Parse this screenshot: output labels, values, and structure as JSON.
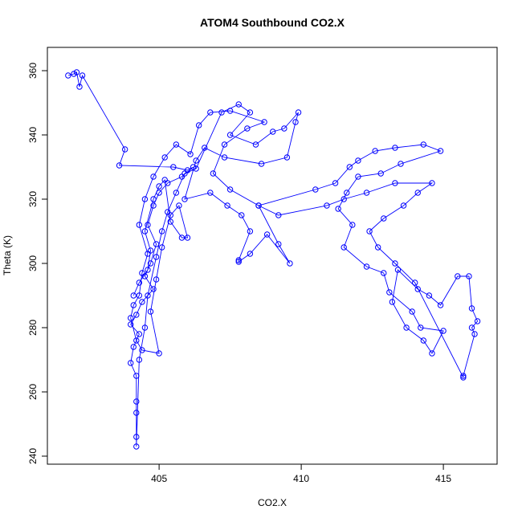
{
  "chart_data": {
    "type": "line",
    "title": "ATOM4 Southbound CO2.X",
    "x_label": "CO2.X",
    "y_label": "Theta (K)",
    "color": "#0000ff",
    "markers": true,
    "xlim": [
      401.07,
      416.89
    ],
    "ylim": [
      237.5,
      367.25
    ],
    "xticks": [
      405,
      410,
      415
    ],
    "yticks": [
      240,
      260,
      280,
      300,
      320,
      340,
      360
    ],
    "x": [
      401.8,
      402,
      402.1,
      402.2,
      402.3,
      403.8,
      403.6,
      405.5,
      406,
      406.2,
      405.8,
      405.3,
      405,
      404.8,
      404.6,
      404.9,
      404.7,
      404.5,
      404.8,
      404.4,
      404.2,
      404,
      404.3,
      404.1,
      404,
      404.2,
      404.2,
      404.2,
      404.2,
      404.2,
      404.3,
      404.5,
      404.6,
      404.9,
      405.1,
      405.3,
      405.6,
      405.9,
      406.3,
      407.2,
      407.8,
      408.2,
      407.5,
      408.4,
      409,
      409.4,
      409.9,
      409.8,
      409.5,
      408.6,
      407.3,
      406.6,
      406.3,
      405.9,
      406.8,
      407.4,
      407.9,
      408.2,
      407.8,
      407.8,
      408.2,
      408.8,
      409.6,
      409.2,
      408.5,
      410.5,
      411.2,
      411.7,
      412,
      412.6,
      413.3,
      414.3,
      414.9,
      413.5,
      412.8,
      412,
      411.6,
      411.3,
      411.8,
      411.5,
      412.3,
      412.9,
      413.1,
      413.9,
      414.2,
      415,
      414.6,
      414.3,
      413.7,
      413.2,
      413.4,
      414.1,
      414.5,
      414.9,
      415.5,
      415.9,
      416,
      416.2,
      416,
      416.1,
      415.7,
      415.7,
      414,
      413.3,
      412.7,
      412.4,
      412.9,
      413.6,
      414.1,
      414.6,
      413.3,
      412.3,
      411.5,
      410.9,
      409.2,
      408.5,
      407.5,
      406.9,
      407.3,
      408.1,
      408.7,
      407.5,
      406.8,
      406.4,
      406.1,
      405.6,
      405.2,
      404.8,
      404.5,
      404.3,
      404.6,
      404.4,
      404.3,
      404.1,
      404,
      404.2,
      404.4,
      405,
      404.7,
      404.9,
      405.1,
      405.4,
      405.7,
      406,
      405.8,
      405.4,
      405.2,
      405,
      404.8,
      404.5,
      404.7,
      404.6,
      404.3,
      404.1
    ],
    "values": [
      358.5,
      359,
      359.5,
      355,
      358.5,
      335.5,
      330.5,
      330,
      329,
      330,
      327,
      325,
      322,
      318,
      312,
      306,
      300,
      296,
      292,
      288,
      284,
      281,
      278,
      274,
      269,
      265,
      257,
      253.5,
      246,
      243,
      270,
      280,
      290,
      302,
      310,
      316,
      322,
      328,
      329.5,
      347,
      349.5,
      347,
      340,
      337,
      341,
      342,
      347,
      344,
      333,
      331,
      333,
      336,
      332,
      320,
      322,
      318,
      315,
      310,
      301,
      300.5,
      303,
      309,
      300,
      306,
      318,
      323,
      325,
      330,
      332,
      335,
      336,
      337,
      335,
      331,
      328,
      327,
      322,
      317,
      312,
      305,
      299,
      297,
      291,
      285,
      280,
      279,
      272,
      276,
      280,
      288,
      298,
      292,
      290,
      287,
      296,
      296,
      286,
      282,
      280,
      278,
      265,
      264.5,
      294,
      300,
      305,
      310,
      314,
      318,
      322,
      325,
      325,
      322,
      320,
      318,
      315,
      318,
      323,
      328,
      337,
      342,
      344,
      347.5,
      347,
      343,
      334,
      337,
      333,
      327,
      320,
      312,
      303,
      297,
      290,
      287,
      283,
      276,
      273,
      272,
      285,
      295,
      305,
      315,
      318,
      308,
      308,
      313,
      326,
      324,
      320,
      310,
      304,
      298,
      294,
      290
    ]
  }
}
